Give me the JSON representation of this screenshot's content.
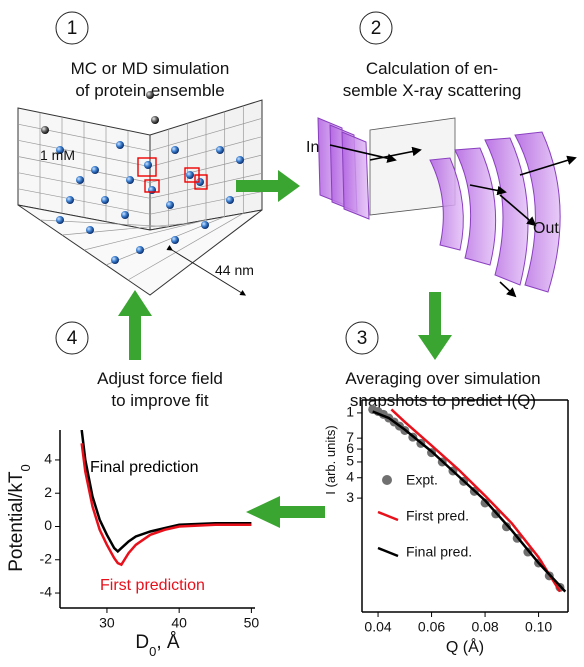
{
  "steps": [
    {
      "number": "1",
      "lines": [
        "MC or MD simulation",
        "of protein ensemble"
      ]
    },
    {
      "number": "2",
      "lines": [
        "Calculation of en-",
        "semble X-ray scattering"
      ]
    },
    {
      "number": "3",
      "lines": [
        "Averaging over simulation",
        "snapshots to predict I(Q)"
      ]
    },
    {
      "number": "4",
      "lines": [
        "Adjust force field",
        "to improve fit"
      ]
    }
  ],
  "scene_labels": {
    "concentration": "1 mM",
    "box_size": "44 nm",
    "beam_in": "In",
    "beam_out": "Out"
  },
  "chart_data": [
    {
      "type": "line",
      "ylabel": {
        "text": "Potential/kT",
        "subscript": "0"
      },
      "xlabel": {
        "text": "D",
        "subscript": "0",
        "suffix": ", Å"
      },
      "xlim": [
        23.5,
        50.5
      ],
      "ylim": [
        -4.9,
        5.8
      ],
      "xticks": [
        30,
        40,
        50
      ],
      "yticks": [
        4,
        2,
        0,
        -2,
        -4
      ],
      "series": [
        {
          "name": "Final prediction",
          "color": "#000000",
          "style": "line",
          "x": [
            26.5,
            27,
            28,
            29,
            30,
            31,
            31.5,
            32,
            33,
            34,
            36,
            38,
            40,
            45,
            50
          ],
          "values": [
            5.8,
            4.0,
            1.8,
            0.4,
            -0.5,
            -1.3,
            -1.5,
            -1.3,
            -0.9,
            -0.6,
            -0.3,
            -0.1,
            0.1,
            0.2,
            0.2
          ]
        },
        {
          "name": "First prediction",
          "color": "#e8101a",
          "style": "line",
          "x": [
            26.5,
            27,
            28,
            29,
            30,
            31,
            31.5,
            32,
            33,
            34,
            36,
            38,
            40,
            45,
            50
          ],
          "values": [
            5.0,
            3.3,
            1.2,
            -0.2,
            -1.1,
            -1.9,
            -2.2,
            -2.3,
            -1.6,
            -1.1,
            -0.5,
            -0.2,
            0,
            0.1,
            0.1
          ]
        }
      ]
    },
    {
      "type": "line",
      "ylog": true,
      "ylabel": {
        "text": "I (arb. units)"
      },
      "xlabel": {
        "text": "Q (Å)"
      },
      "xlim": [
        0.034,
        0.111
      ],
      "ylim": [
        0.06,
        1.2
      ],
      "xticks": [
        0.04,
        0.06,
        0.08,
        {
          "value": 0.1,
          "label": "0.10"
        }
      ],
      "yticks": [
        1,
        {
          "value": 0.7,
          "label": "7"
        },
        {
          "value": 0.6,
          "label": "6"
        },
        {
          "value": 0.5,
          "label": "5"
        },
        {
          "value": 0.4,
          "label": "4"
        },
        {
          "value": 0.3,
          "label": "3"
        }
      ],
      "series": [
        {
          "name": "Expt.",
          "color": "#707070",
          "style": "markers",
          "x": [
            0.038,
            0.04,
            0.042,
            0.044,
            0.046,
            0.048,
            0.05,
            0.053,
            0.056,
            0.06,
            0.064,
            0.068,
            0.072,
            0.076,
            0.08,
            0.084,
            0.088,
            0.092,
            0.096,
            0.1,
            0.104,
            0.108
          ],
          "values": [
            1.05,
            1.02,
            0.98,
            0.93,
            0.88,
            0.83,
            0.78,
            0.71,
            0.65,
            0.57,
            0.5,
            0.44,
            0.38,
            0.33,
            0.28,
            0.24,
            0.2,
            0.17,
            0.14,
            0.12,
            0.1,
            0.085
          ]
        },
        {
          "name": "First pred.",
          "color": "#e8101a",
          "style": "line",
          "x": [
            0.045,
            0.05,
            0.06,
            0.07,
            0.08,
            0.09,
            0.1,
            0.108
          ],
          "values": [
            1.05,
            0.88,
            0.63,
            0.45,
            0.31,
            0.21,
            0.13,
            0.08
          ]
        },
        {
          "name": "Final pred.",
          "color": "#000000",
          "style": "line",
          "x": [
            0.038,
            0.044,
            0.05,
            0.06,
            0.07,
            0.08,
            0.09,
            0.1,
            0.11
          ],
          "values": [
            1.02,
            0.93,
            0.79,
            0.58,
            0.41,
            0.29,
            0.19,
            0.12,
            0.08
          ]
        }
      ]
    }
  ]
}
